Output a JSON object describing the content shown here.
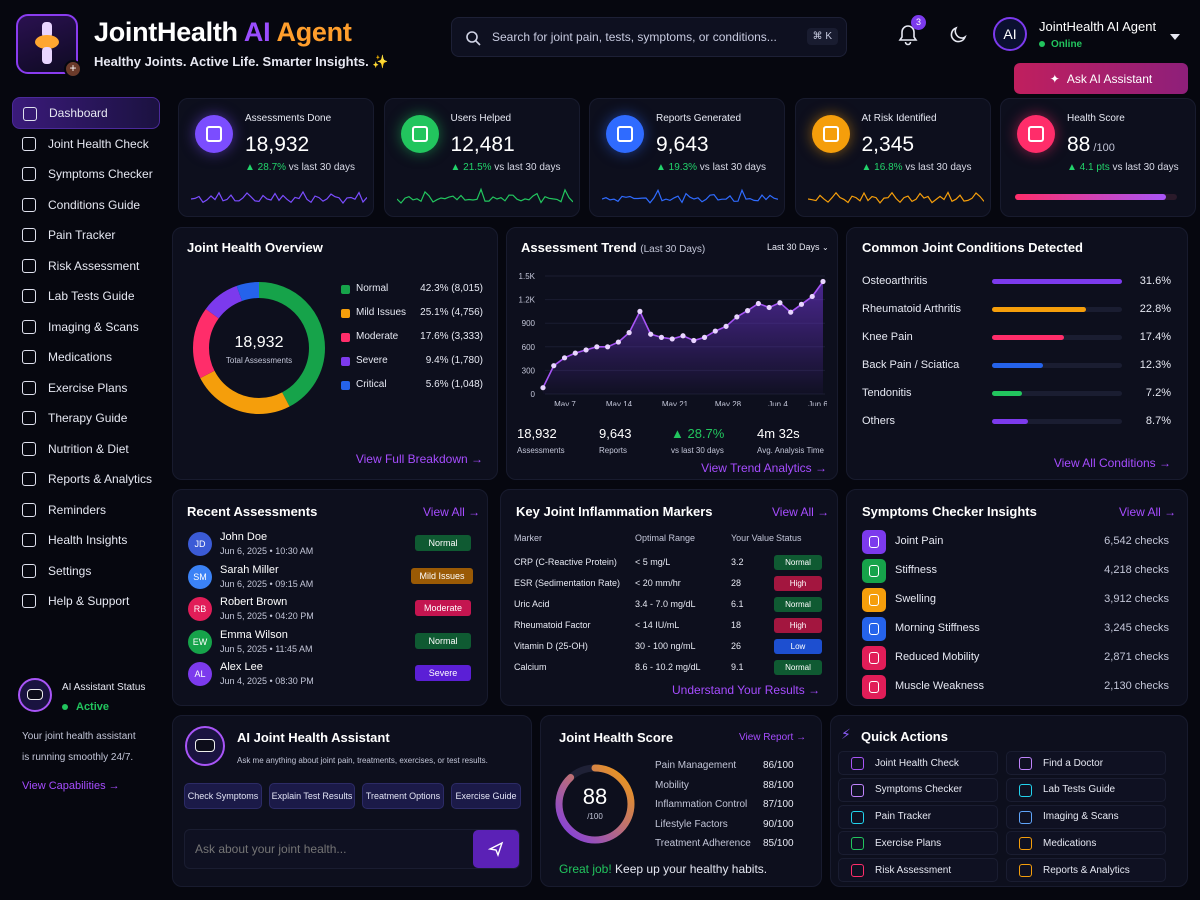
{
  "header": {
    "brand_main": "JointHealth",
    "brand_ai": "AI",
    "brand_agent": "Agent",
    "tagline": "Healthy Joints. Active Life. Smarter Insights. ✨",
    "search_placeholder": "Search for joint pain, tests, symptoms, or conditions...",
    "search_shortcut": "⌘ K",
    "notifications_count": "3",
    "user_avatar": "AI",
    "user_name": "JointHealth AI Agent",
    "user_status": "Online",
    "ask_button": "Ask AI Assistant"
  },
  "sidebar": {
    "items": [
      {
        "label": "Dashboard",
        "icon": "home-icon"
      },
      {
        "label": "Joint Health Check",
        "icon": "bone-icon"
      },
      {
        "label": "Symptoms Checker",
        "icon": "stethoscope-icon"
      },
      {
        "label": "Conditions Guide",
        "icon": "calendar-icon"
      },
      {
        "label": "Pain Tracker",
        "icon": "bone-icon"
      },
      {
        "label": "Risk Assessment",
        "icon": "alert-icon"
      },
      {
        "label": "Lab Tests Guide",
        "icon": "flask-icon"
      },
      {
        "label": "Imaging & Scans",
        "icon": "scan-icon"
      },
      {
        "label": "Medications",
        "icon": "pill-icon"
      },
      {
        "label": "Exercise Plans",
        "icon": "dumbbell-icon"
      },
      {
        "label": "Therapy Guide",
        "icon": "doc-icon"
      },
      {
        "label": "Nutrition & Diet",
        "icon": "apple-icon"
      },
      {
        "label": "Reports & Analytics",
        "icon": "chart-icon"
      },
      {
        "label": "Reminders",
        "icon": "bell-icon"
      },
      {
        "label": "Health Insights",
        "icon": "insight-icon"
      },
      {
        "label": "Settings",
        "icon": "gear-icon"
      },
      {
        "label": "Help & Support",
        "icon": "help-icon"
      }
    ],
    "assistant_title": "AI Assistant Status",
    "assistant_status": "Active",
    "assistant_text_1": "Your joint health assistant",
    "assistant_text_2": "is running smoothly 24/7.",
    "assistant_link": "View Capabilities →"
  },
  "stats": [
    {
      "label": "Assessments Done",
      "value": "18,932",
      "change": "▲ 28.7%",
      "suffix": " vs last 30 days",
      "color": "#7b4dff",
      "icon": "trend-icon"
    },
    {
      "label": "Users Helped",
      "value": "12,481",
      "change": "▲ 21.5%",
      "suffix": " vs last 30 days",
      "color": "#22c55e",
      "icon": "users-icon"
    },
    {
      "label": "Reports Generated",
      "value": "9,643",
      "change": "▲ 19.3%",
      "suffix": " vs last 30 days",
      "color": "#2f6bff",
      "icon": "clipboard-icon"
    },
    {
      "label": "At Risk Identified",
      "value": "2,345",
      "change": "▲ 16.8%",
      "suffix": " vs last 30 days",
      "color": "#f59e0b",
      "icon": "warning-icon"
    },
    {
      "label": "Health Score",
      "value": "88",
      "value_suffix": " /100",
      "change": "▲ 4.1 pts",
      "suffix": " vs last 30 days",
      "color": "#ff2d6a",
      "icon": "heart-pulse-icon"
    }
  ],
  "overview": {
    "title": "Joint Health Overview",
    "center_value": "18,932",
    "center_label": "Total Assessments",
    "link": "View Full Breakdown →",
    "segments": [
      {
        "label": "Normal",
        "value": "42.3% (8,015)",
        "pct": 42.3,
        "color": "#16a34a"
      },
      {
        "label": "Mild Issues",
        "value": "25.1% (4,756)",
        "pct": 25.1,
        "color": "#f59e0b"
      },
      {
        "label": "Moderate",
        "value": "17.6% (3,333)",
        "pct": 17.6,
        "color": "#ff2d6a"
      },
      {
        "label": "Severe",
        "value": "9.4% (1,780)",
        "pct": 9.4,
        "color": "#7c3aed"
      },
      {
        "label": "Critical",
        "value": "5.6% (1,048)",
        "pct": 5.6,
        "color": "#2563eb"
      }
    ]
  },
  "trend": {
    "title": "Assessment Trend",
    "subtitle": "(Last 30 Days)",
    "range_select": "Last 30 Days",
    "stats": [
      {
        "value": "18,932",
        "label": "Assessments"
      },
      {
        "value": "9,643",
        "label": "Reports"
      },
      {
        "value": "▲ 28.7%",
        "label": "vs last 30 days"
      },
      {
        "value": "4m 32s",
        "label": "Avg. Analysis Time"
      }
    ],
    "link": "View Trend Analytics →"
  },
  "chart_data": {
    "type": "area",
    "title": "Assessment Trend",
    "y_ticks": [
      "0",
      "300",
      "600",
      "900",
      "1.2K",
      "1.5K"
    ],
    "ylim": [
      0,
      1500
    ],
    "x_ticks": [
      "May 7",
      "May 14",
      "May 21",
      "May 28",
      "Jun 4",
      "Jun 6"
    ],
    "values": [
      80,
      360,
      460,
      520,
      560,
      600,
      600,
      660,
      780,
      1050,
      760,
      720,
      700,
      740,
      680,
      720,
      800,
      860,
      980,
      1060,
      1150,
      1100,
      1160,
      1040,
      1140,
      1240,
      1430
    ],
    "grid": true
  },
  "conditions": {
    "title": "Common Joint Conditions Detected",
    "link": "View All Conditions →",
    "items": [
      {
        "label": "Osteoarthritis",
        "value": "31.6%",
        "pct": 31.6,
        "color": "#7c3aed"
      },
      {
        "label": "Rheumatoid Arthritis",
        "value": "22.8%",
        "pct": 22.8,
        "color": "#f59e0b"
      },
      {
        "label": "Knee Pain",
        "value": "17.4%",
        "pct": 17.4,
        "color": "#ff2d6a"
      },
      {
        "label": "Back Pain / Sciatica",
        "value": "12.3%",
        "pct": 12.3,
        "color": "#2563eb"
      },
      {
        "label": "Tendonitis",
        "value": "7.2%",
        "pct": 7.2,
        "color": "#22c55e"
      },
      {
        "label": "Others",
        "value": "8.7%",
        "pct": 8.7,
        "color": "#7c3aed"
      }
    ]
  },
  "recent": {
    "title": "Recent Assessments",
    "link": "View All →",
    "items": [
      {
        "initials": "JD",
        "name": "John Doe",
        "date": "Jun 6, 2025 • 10:30 AM",
        "status": "Normal",
        "avatar": "#3b5bd6",
        "pill": "#0f5a32"
      },
      {
        "initials": "SM",
        "name": "Sarah Miller",
        "date": "Jun 6, 2025 • 09:15 AM",
        "status": "Mild Issues",
        "avatar": "#3b82f6",
        "pill": "#9a5a05"
      },
      {
        "initials": "RB",
        "name": "Robert Brown",
        "date": "Jun 5, 2025 • 04:20 PM",
        "status": "Moderate",
        "avatar": "#e11d58",
        "pill": "#c41550"
      },
      {
        "initials": "EW",
        "name": "Emma Wilson",
        "date": "Jun 5, 2025 • 11:45 AM",
        "status": "Normal",
        "avatar": "#16a34a",
        "pill": "#0f5a32"
      },
      {
        "initials": "AL",
        "name": "Alex Lee",
        "date": "Jun 4, 2025 • 08:30 PM",
        "status": "Severe",
        "avatar": "#7c3aed",
        "pill": "#5b1fd6"
      }
    ]
  },
  "markers": {
    "title": "Key Joint Inflammation Markers",
    "link": "View All →",
    "columns": [
      "Marker",
      "Optimal Range",
      "Your Value",
      "Status"
    ],
    "rows": [
      {
        "marker": "CRP (C-Reactive Protein)",
        "range": "< 5 mg/L",
        "value": "3.2",
        "status": "Normal",
        "pill": "#0f5a32"
      },
      {
        "marker": "ESR (Sedimentation Rate)",
        "range": "< 20 mm/hr",
        "value": "28",
        "status": "High",
        "pill": "#a3163f"
      },
      {
        "marker": "Uric Acid",
        "range": "3.4 - 7.0 mg/dL",
        "value": "6.1",
        "status": "Normal",
        "pill": "#0f5a32"
      },
      {
        "marker": "Rheumatoid Factor",
        "range": "< 14 IU/mL",
        "value": "18",
        "status": "High",
        "pill": "#a3163f"
      },
      {
        "marker": "Vitamin D (25-OH)",
        "range": "30 - 100 ng/mL",
        "value": "26",
        "status": "Low",
        "pill": "#1d4fd0"
      },
      {
        "marker": "Calcium",
        "range": "8.6 - 10.2 mg/dL",
        "value": "9.1",
        "status": "Normal",
        "pill": "#0f5a32"
      }
    ],
    "footer_link": "Understand Your Results →"
  },
  "symptoms": {
    "title": "Symptoms Checker Insights",
    "link": "View All →",
    "items": [
      {
        "label": "Joint Pain",
        "value": "6,542 checks",
        "color": "#7c3aed",
        "icon": "bone-icon"
      },
      {
        "label": "Stiffness",
        "value": "4,218 checks",
        "color": "#16a34a",
        "icon": "stiffness-icon"
      },
      {
        "label": "Swelling",
        "value": "3,912 checks",
        "color": "#f59e0b",
        "icon": "swelling-icon"
      },
      {
        "label": "Morning Stiffness",
        "value": "3,245 checks",
        "color": "#2563eb",
        "icon": "calendar-icon"
      },
      {
        "label": "Reduced Mobility",
        "value": "2,871 checks",
        "color": "#e11d58",
        "icon": "walk-icon"
      },
      {
        "label": "Muscle Weakness",
        "value": "2,130 checks",
        "color": "#e11d58",
        "icon": "muscle-icon"
      }
    ]
  },
  "assistant": {
    "title": "AI Joint Health Assistant",
    "subtitle": "Ask me anything about joint pain, treatments, exercises, or test results.",
    "chips": [
      "Check Symptoms",
      "Explain Test Results",
      "Treatment Options",
      "Exercise Guide"
    ],
    "input_placeholder": "Ask about your joint health..."
  },
  "score": {
    "title": "Joint Health Score",
    "link": "View Report →",
    "value": "88",
    "max": "/100",
    "fraction": 0.88,
    "items": [
      {
        "label": "Pain Management",
        "value": "86/100"
      },
      {
        "label": "Mobility",
        "value": "88/100"
      },
      {
        "label": "Inflammation Control",
        "value": "87/100"
      },
      {
        "label": "Lifestyle Factors",
        "value": "90/100"
      },
      {
        "label": "Treatment Adherence",
        "value": "85/100"
      }
    ],
    "great": "Great job!",
    "footer": " Keep up your healthy habits."
  },
  "quick": {
    "title": "Quick Actions",
    "items": [
      {
        "label": "Joint Health Check",
        "color": "#a855f7"
      },
      {
        "label": "Find a Doctor",
        "color": "#c084fc"
      },
      {
        "label": "Symptoms Checker",
        "color": "#c084fc"
      },
      {
        "label": "Lab Tests Guide",
        "color": "#22d3ee"
      },
      {
        "label": "Pain Tracker",
        "color": "#22d3ee"
      },
      {
        "label": "Imaging & Scans",
        "color": "#60a5fa"
      },
      {
        "label": "Exercise Plans",
        "color": "#22c55e"
      },
      {
        "label": "Medications",
        "color": "#f59e0b"
      },
      {
        "label": "Risk Assessment",
        "color": "#ff2d6a"
      },
      {
        "label": "Reports & Analytics",
        "color": "#f59e0b"
      }
    ]
  }
}
